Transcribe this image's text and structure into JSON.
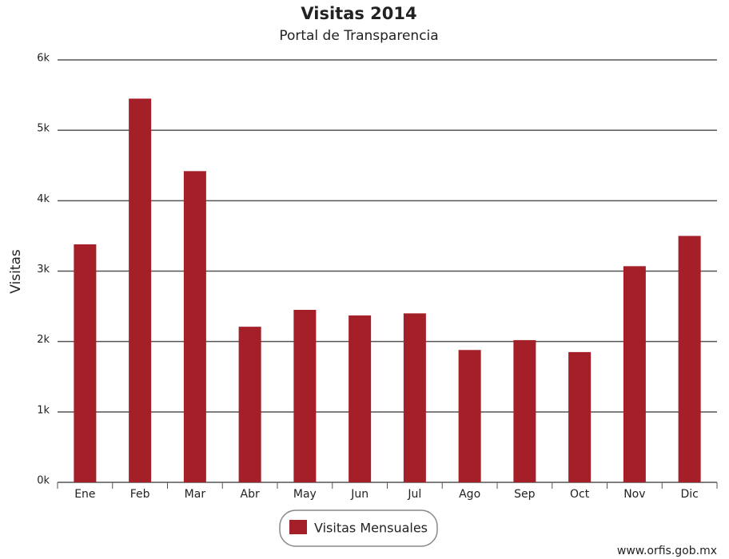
{
  "chart_data": {
    "type": "bar",
    "title": "Visitas 2014",
    "subtitle": "Portal de Transparencia",
    "y_label": "Visitas",
    "categories": [
      "Ene",
      "Feb",
      "Mar",
      "Abr",
      "May",
      "Jun",
      "Jul",
      "Ago",
      "Sep",
      "Oct",
      "Nov",
      "Dic"
    ],
    "series": [
      {
        "name": "Visitas Mensuales",
        "color": "#a51f28",
        "values": [
          3380,
          5450,
          4420,
          2210,
          2450,
          2370,
          2400,
          1880,
          2020,
          1850,
          3070,
          3500
        ]
      }
    ],
    "ylim": [
      0,
      6000
    ],
    "yticks": [
      {
        "value": 0,
        "label": "0k"
      },
      {
        "value": 1000,
        "label": "1k"
      },
      {
        "value": 2000,
        "label": "2k"
      },
      {
        "value": 3000,
        "label": "3k"
      },
      {
        "value": 4000,
        "label": "4k"
      },
      {
        "value": 5000,
        "label": "5k"
      },
      {
        "value": 6000,
        "label": "6k"
      }
    ],
    "grid": true,
    "legend": "bottom",
    "credit": "www.orfis.gob.mx"
  }
}
